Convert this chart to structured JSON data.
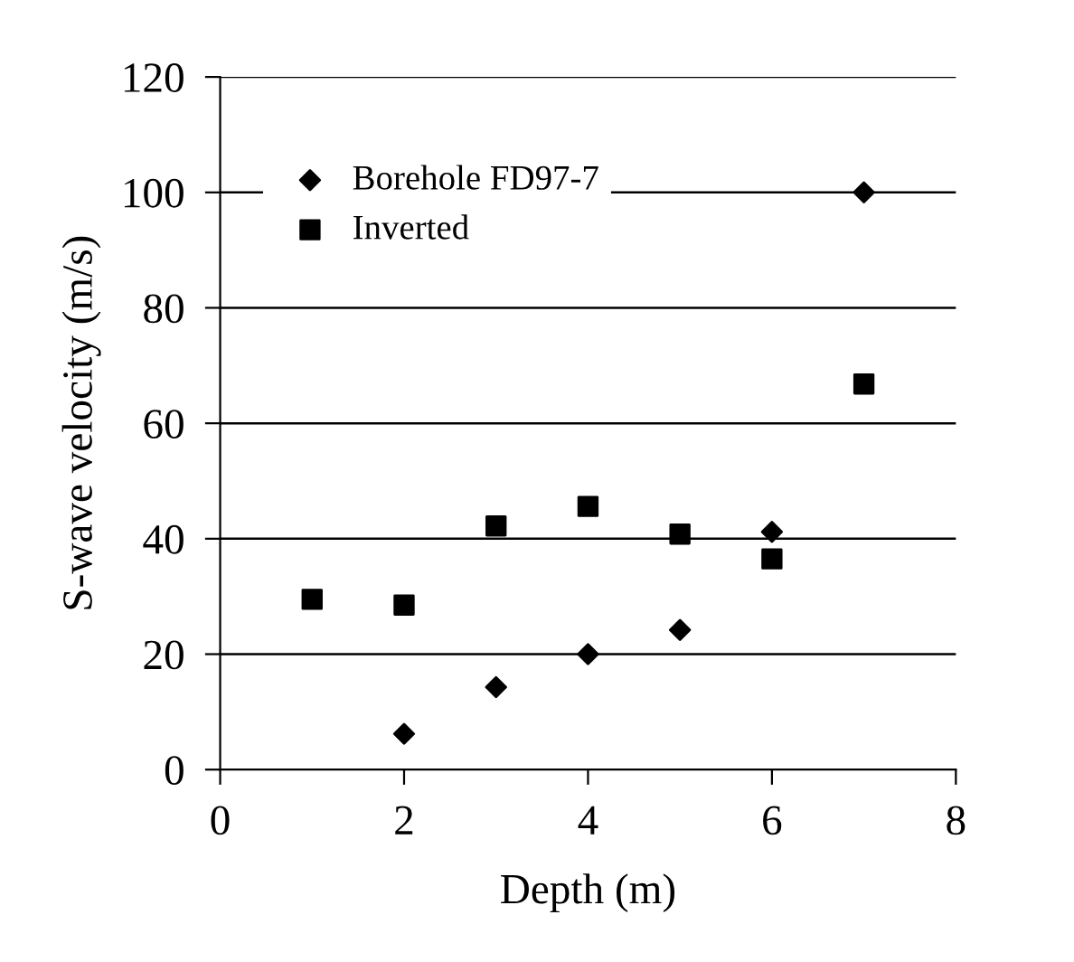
{
  "chart_data": {
    "type": "scatter",
    "xlabel": "Depth (m)",
    "ylabel": "S-wave velocity (m/s)",
    "xlim": [
      0,
      8
    ],
    "xticks": [
      0,
      2,
      4,
      6,
      8
    ],
    "ylim": [
      0,
      120
    ],
    "yticks": [
      0,
      20,
      40,
      60,
      80,
      100,
      120
    ],
    "grid": "y",
    "legend": "top left",
    "series": [
      {
        "name": "Borehole FD97-7",
        "color": "#000000",
        "marker": "diamond",
        "x": [
          2,
          3,
          4,
          5,
          6,
          7
        ],
        "values": [
          6.2,
          14.3,
          20,
          24.2,
          41.2,
          100
        ]
      },
      {
        "name": "Inverted",
        "color": "#000000",
        "marker": "square",
        "x": [
          1,
          2,
          3,
          4,
          5,
          6,
          7
        ],
        "values": [
          29.5,
          28.5,
          42.2,
          45.6,
          40.8,
          36.5,
          66.8
        ]
      }
    ]
  }
}
